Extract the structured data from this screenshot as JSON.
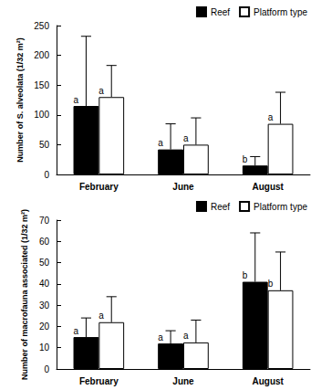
{
  "chart_data": [
    {
      "type": "bar",
      "y_label": "Number of S. alveolata (1/32 m²)",
      "categories": [
        "February",
        "June",
        "August"
      ],
      "series": [
        {
          "name": "Reef",
          "color": "#000000",
          "values": [
            115,
            42,
            15
          ],
          "errors": [
            117,
            43,
            15
          ],
          "annotations": [
            "a",
            "a",
            "b"
          ]
        },
        {
          "name": "Platform type",
          "color": "#ffffff",
          "values": [
            130,
            50,
            85
          ],
          "errors": [
            53,
            45,
            53
          ],
          "annotations": [
            "a",
            "a",
            "a"
          ]
        }
      ],
      "ylim": [
        0,
        250
      ],
      "yticks": [
        0,
        50,
        100,
        150,
        200,
        250
      ],
      "grid": false,
      "legend": "upper right"
    },
    {
      "type": "bar",
      "y_label": "Number of macrofauna associated (1/32 m²)",
      "categories": [
        "February",
        "June",
        "August"
      ],
      "series": [
        {
          "name": "Reef",
          "color": "#000000",
          "values": [
            15,
            12,
            41
          ],
          "errors": [
            9,
            6,
            23
          ],
          "annotations": [
            "a",
            "a",
            "b"
          ]
        },
        {
          "name": "Platform type",
          "color": "#ffffff",
          "values": [
            22,
            12.5,
            37
          ],
          "errors": [
            12,
            10.5,
            18
          ],
          "annotations": [
            "a",
            "a",
            "b"
          ]
        }
      ],
      "ylim": [
        0,
        70
      ],
      "yticks": [
        0,
        10,
        20,
        30,
        40,
        50,
        60,
        70
      ],
      "grid": false,
      "legend": "upper right"
    }
  ]
}
